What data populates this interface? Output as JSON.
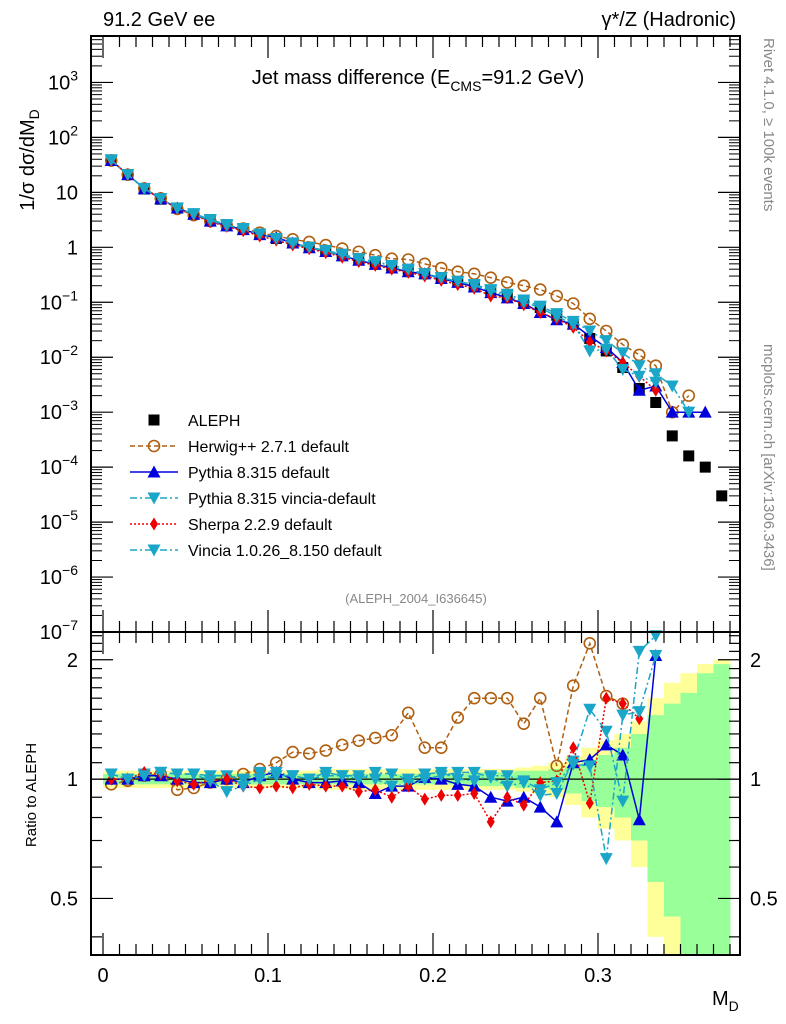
{
  "header": {
    "left": "91.2 GeV ee",
    "right": "γ*/Z (Hadronic)"
  },
  "side_labels": {
    "rivet": "Rivet 4.1.0, ≥ 100k events",
    "mcplots": "mcplots.cern.ch [arXiv:1306.3436]"
  },
  "chart_data": [
    {
      "type": "scatter",
      "panel": "main",
      "title_main": "Jet mass difference (E",
      "title_sub": "CMS",
      "title_tail": "=91.2 GeV)",
      "ylabel": "1/σ  dσ/dM",
      "ylabel_sub": "D",
      "yscale": "log",
      "ylim": [
        1e-07,
        7000
      ],
      "xlim": [
        -0.0075,
        0.385
      ],
      "ytick_labels": [
        {
          "v": 1000,
          "base": "10",
          "exp": "3"
        },
        {
          "v": 100,
          "base": "10",
          "exp": "2"
        },
        {
          "v": 10,
          "base": "10",
          "exp": ""
        },
        {
          "v": 1,
          "base": "1",
          "exp": ""
        },
        {
          "v": 0.1,
          "base": "10",
          "exp": "−1"
        },
        {
          "v": 0.01,
          "base": "10",
          "exp": "−2"
        },
        {
          "v": 0.001,
          "base": "10",
          "exp": "−3"
        },
        {
          "v": 0.0001,
          "base": "10",
          "exp": "−4"
        },
        {
          "v": 1e-05,
          "base": "10",
          "exp": "−5"
        },
        {
          "v": 1e-06,
          "base": "10",
          "exp": "−6"
        },
        {
          "v": 1e-07,
          "base": "10",
          "exp": "−7"
        }
      ],
      "annotation": "(ALEPH_2004_I636645)",
      "legend_position": "center-left",
      "x": [
        0.005,
        0.015,
        0.025,
        0.035,
        0.045,
        0.055,
        0.065,
        0.075,
        0.085,
        0.095,
        0.105,
        0.115,
        0.125,
        0.135,
        0.145,
        0.155,
        0.165,
        0.175,
        0.185,
        0.195,
        0.205,
        0.215,
        0.225,
        0.235,
        0.245,
        0.255,
        0.265,
        0.275,
        0.285,
        0.295,
        0.305,
        0.315,
        0.325,
        0.335,
        0.345,
        0.355,
        0.365,
        0.375
      ],
      "series": [
        {
          "name": "ALEPH",
          "color": "#000000",
          "marker": "square",
          "line": "none",
          "values": [
            39,
            21,
            11.5,
            7.5,
            5.2,
            4.0,
            3.1,
            2.5,
            2.15,
            1.75,
            1.45,
            1.2,
            1.0,
            0.86,
            0.72,
            0.62,
            0.53,
            0.45,
            0.39,
            0.33,
            0.28,
            0.24,
            0.2,
            0.165,
            0.135,
            0.105,
            0.08,
            0.058,
            0.04,
            0.022,
            0.013,
            0.0065,
            0.0027,
            0.0015,
            0.00037,
            0.00016,
            0.0001,
            3e-05
          ]
        },
        {
          "name": "Herwig++ 2.7.1 default",
          "color": "#b05f10",
          "marker": "open-circle",
          "line": "dashed",
          "values": [
            38,
            21,
            11.8,
            7.8,
            5.0,
            3.85,
            3.0,
            2.5,
            2.2,
            1.85,
            1.6,
            1.4,
            1.25,
            1.1,
            0.95,
            0.83,
            0.72,
            0.62,
            0.6,
            0.5,
            0.42,
            0.36,
            0.33,
            0.28,
            0.23,
            0.2,
            0.17,
            0.13,
            0.095,
            0.05,
            0.03,
            0.017,
            0.011,
            0.007,
            0.001,
            0.002,
            null,
            null
          ]
        },
        {
          "name": "Pythia 8.315 default",
          "color": "#0000dd",
          "marker": "triangle-up",
          "line": "solid",
          "values": [
            38,
            21,
            11.6,
            7.6,
            5.2,
            4.0,
            3.0,
            2.45,
            2.1,
            1.7,
            1.5,
            1.2,
            0.98,
            0.84,
            0.7,
            0.58,
            0.49,
            0.42,
            0.36,
            0.33,
            0.27,
            0.23,
            0.19,
            0.15,
            0.12,
            0.095,
            0.065,
            0.048,
            0.04,
            0.024,
            0.015,
            0.008,
            0.0025,
            0.003,
            0.001,
            0.001,
            0.001,
            null
          ]
        },
        {
          "name": "Pythia 8.315 vincia-default",
          "color": "#1aa6c8",
          "marker": "triangle-down",
          "line": "dashdot",
          "values": [
            38,
            21,
            11.8,
            7.7,
            5.2,
            4.1,
            3.2,
            2.6,
            2.1,
            1.7,
            1.4,
            1.15,
            0.98,
            0.85,
            0.69,
            0.6,
            0.51,
            0.43,
            0.38,
            0.33,
            0.28,
            0.24,
            0.21,
            0.17,
            0.14,
            0.11,
            0.085,
            0.062,
            0.045,
            0.03,
            0.02,
            0.012,
            0.007,
            0.005,
            0.003,
            0.001,
            null,
            null
          ]
        },
        {
          "name": "Sherpa 2.2.9 default",
          "color": "#ee0000",
          "marker": "diamond",
          "line": "dotted",
          "values": [
            38,
            21,
            11.7,
            7.6,
            5.1,
            3.9,
            2.9,
            2.4,
            2.0,
            1.6,
            1.35,
            1.1,
            0.94,
            0.8,
            0.66,
            0.55,
            0.47,
            0.4,
            0.35,
            0.3,
            0.25,
            0.21,
            0.18,
            0.13,
            0.12,
            0.09,
            0.065,
            0.05,
            0.035,
            0.019,
            0.013,
            0.008,
            0.0045,
            0.0025,
            null,
            null,
            null,
            null
          ]
        },
        {
          "name": "Vincia 1.0.26_8.150 default",
          "color": "#1aa6c8",
          "marker": "triangle-down",
          "line": "dashdot",
          "values": [
            39,
            21,
            11.6,
            7.7,
            5.1,
            4.0,
            3.1,
            2.5,
            2.2,
            1.75,
            1.45,
            1.2,
            1.0,
            0.88,
            0.75,
            0.62,
            0.55,
            0.47,
            0.4,
            0.33,
            0.28,
            0.24,
            0.2,
            0.16,
            0.13,
            0.1,
            0.08,
            0.055,
            0.04,
            0.013,
            0.014,
            0.006,
            0.0045,
            0.0035,
            null,
            null,
            null,
            null
          ]
        }
      ]
    },
    {
      "type": "scatter",
      "panel": "ratio",
      "ylabel": "Ratio to ALEPH",
      "yscale": "log",
      "ylim": [
        0.36,
        2.35
      ],
      "ytick_labels": [
        {
          "v": 2,
          "label": "2"
        },
        {
          "v": 1,
          "label": "1"
        },
        {
          "v": 0.5,
          "label": "0.5"
        }
      ],
      "xtick_labels": [
        {
          "v": 0,
          "label": "0"
        },
        {
          "v": 0.1,
          "label": "0.1"
        },
        {
          "v": 0.2,
          "label": "0.2"
        },
        {
          "v": 0.3,
          "label": "0.3"
        }
      ],
      "xlabel": "M",
      "xlabel_sub": "D",
      "band_stat": [
        0.03,
        0.03,
        0.03,
        0.03,
        0.03,
        0.03,
        0.03,
        0.03,
        0.03,
        0.03,
        0.03,
        0.03,
        0.03,
        0.03,
        0.03,
        0.03,
        0.03,
        0.03,
        0.03,
        0.03,
        0.03,
        0.03,
        0.04,
        0.04,
        0.04,
        0.05,
        0.05,
        0.06,
        0.08,
        0.12,
        0.15,
        0.2,
        0.3,
        0.45,
        0.55,
        0.65,
        0.85,
        0.95
      ],
      "band_total": [
        0.05,
        0.05,
        0.05,
        0.05,
        0.05,
        0.05,
        0.05,
        0.05,
        0.05,
        0.05,
        0.05,
        0.05,
        0.05,
        0.06,
        0.06,
        0.06,
        0.06,
        0.06,
        0.06,
        0.06,
        0.06,
        0.06,
        0.06,
        0.06,
        0.06,
        0.07,
        0.08,
        0.1,
        0.14,
        0.2,
        0.25,
        0.3,
        0.4,
        0.6,
        0.75,
        0.85,
        0.95,
        1.0
      ],
      "series": [
        {
          "name": "Herwig++ 2.7.1 default",
          "values": [
            0.97,
            0.99,
            1.02,
            1.03,
            0.94,
            0.95,
            0.98,
            1.0,
            1.03,
            1.06,
            1.1,
            1.17,
            1.16,
            1.18,
            1.22,
            1.25,
            1.27,
            1.29,
            1.47,
            1.2,
            1.2,
            1.43,
            1.6,
            1.6,
            1.6,
            1.38,
            1.6,
            1.08,
            1.72,
            2.2,
            1.62,
            1.55,
            null,
            null,
            null,
            null,
            null,
            null
          ]
        },
        {
          "name": "Pythia 8.315 default",
          "values": [
            1.0,
            1.0,
            1.02,
            1.02,
            1.0,
            0.98,
            0.98,
            1.0,
            0.98,
            1.02,
            1.04,
            1.0,
            0.98,
            0.98,
            0.99,
            0.98,
            0.92,
            0.96,
            0.96,
            1.01,
            1.0,
            0.97,
            0.96,
            0.9,
            0.88,
            0.9,
            0.85,
            0.78,
            1.1,
            1.12,
            1.22,
            1.15,
            0.79,
            2.05,
            null,
            null,
            null,
            null
          ]
        },
        {
          "name": "Pythia 8.315 vincia-default",
          "values": [
            1.03,
            1.0,
            1.03,
            1.04,
            1.03,
            1.03,
            1.02,
            1.02,
            1.0,
            1.04,
            1.04,
            1.02,
            1.0,
            1.04,
            1.02,
            1.02,
            1.0,
            0.96,
            0.97,
            1.0,
            1.02,
            1.04,
            1.04,
            1.01,
            0.96,
            0.98,
            0.91,
            0.92,
            1.11,
            1.5,
            1.32,
            0.88,
            2.1,
            2.3,
            null,
            null,
            null,
            null
          ]
        },
        {
          "name": "Sherpa 2.2.9 default",
          "values": [
            1.0,
            1.0,
            1.04,
            1.03,
            0.99,
            0.97,
            0.99,
            1.0,
            0.96,
            0.95,
            0.96,
            0.95,
            0.97,
            0.96,
            0.96,
            0.93,
            0.94,
            0.9,
            0.96,
            0.89,
            0.91,
            0.91,
            0.92,
            0.78,
            0.9,
            0.86,
            0.98,
            0.99,
            1.2,
            0.87,
            1.6,
            1.55,
            1.42,
            null,
            null,
            null,
            null,
            null
          ]
        },
        {
          "name": "Vincia 1.0.26_8.150 default",
          "values": [
            1.03,
            1.0,
            1.02,
            1.04,
            1.03,
            1.03,
            0.99,
            0.93,
            0.96,
            1.0,
            1.02,
            1.02,
            1.0,
            1.02,
            1.02,
            1.0,
            1.04,
            1.03,
            1.0,
            1.03,
            1.04,
            1.0,
            0.99,
            1.02,
            1.02,
            0.99,
            0.94,
            0.98,
            1.09,
            1.08,
            0.63,
            1.45,
            1.48,
            2.05,
            null,
            null,
            null,
            null
          ]
        }
      ]
    }
  ]
}
